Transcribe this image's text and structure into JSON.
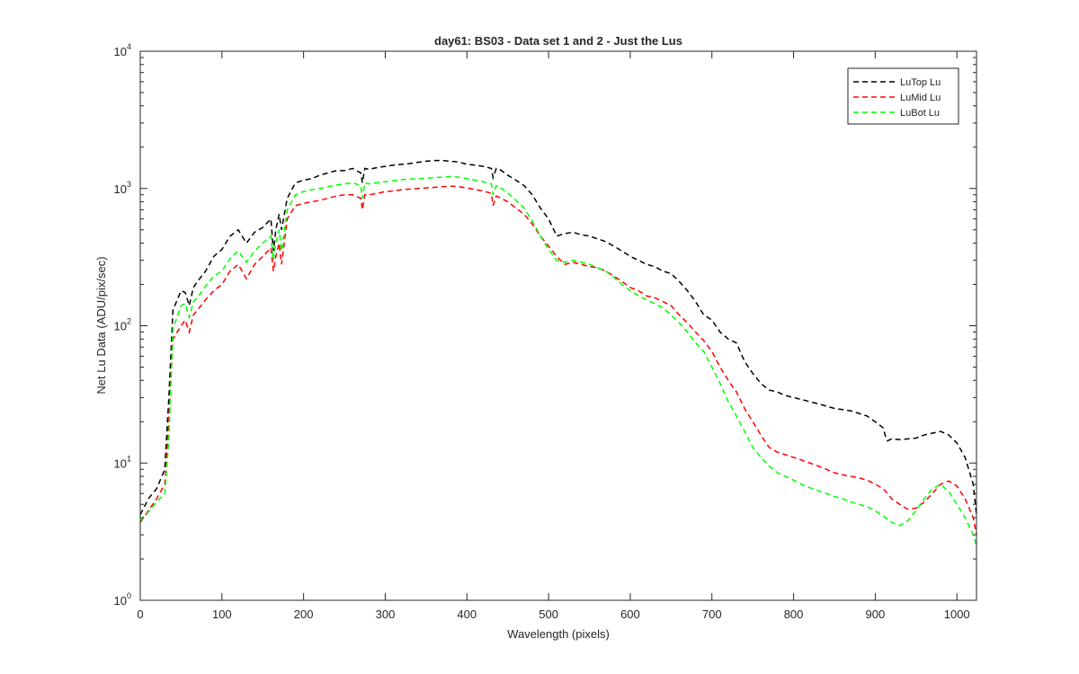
{
  "chart_data": {
    "type": "line",
    "title": "day61: BS03 - Data set 1 and 2 - Just the Lus",
    "xlabel": "Wavelength (pixels)",
    "ylabel": "Net Lu Data (ADU/pix/sec)",
    "xlim": [
      0,
      1024
    ],
    "ylim": [
      1,
      10000
    ],
    "yscale": "log",
    "grid": false,
    "legend_position": "top-right",
    "x_ticks": [
      0,
      100,
      200,
      300,
      400,
      500,
      600,
      700,
      800,
      900,
      1000
    ],
    "y_ticks": [
      {
        "value": 1,
        "base": "10",
        "exp": "0"
      },
      {
        "value": 10,
        "base": "10",
        "exp": "1"
      },
      {
        "value": 100,
        "base": "10",
        "exp": "2"
      },
      {
        "value": 1000,
        "base": "10",
        "exp": "3"
      },
      {
        "value": 10000,
        "base": "10",
        "exp": "4"
      }
    ],
    "series": [
      {
        "name": "LuTop  Lu",
        "color": "#000000",
        "x": [
          0,
          10,
          20,
          30,
          35,
          40,
          50,
          55,
          60,
          65,
          70,
          80,
          90,
          100,
          110,
          120,
          130,
          140,
          150,
          160,
          163,
          166,
          170,
          173,
          180,
          190,
          200,
          210,
          220,
          230,
          240,
          250,
          260,
          270,
          272,
          275,
          280,
          290,
          300,
          310,
          320,
          330,
          340,
          350,
          360,
          370,
          380,
          390,
          400,
          410,
          420,
          430,
          432,
          436,
          440,
          450,
          460,
          470,
          480,
          490,
          500,
          510,
          520,
          530,
          540,
          550,
          560,
          570,
          580,
          590,
          600,
          610,
          620,
          630,
          640,
          650,
          660,
          670,
          680,
          690,
          700,
          710,
          720,
          730,
          740,
          750,
          760,
          770,
          780,
          790,
          800,
          810,
          820,
          830,
          840,
          850,
          860,
          870,
          880,
          890,
          900,
          910,
          912,
          915,
          920,
          930,
          940,
          950,
          960,
          970,
          980,
          990,
          1000,
          1010,
          1020,
          1024
        ],
        "values": [
          4.2,
          5.5,
          6.5,
          9,
          30,
          130,
          180,
          175,
          140,
          190,
          210,
          250,
          320,
          360,
          450,
          500,
          400,
          480,
          520,
          600,
          350,
          500,
          650,
          500,
          850,
          1100,
          1150,
          1180,
          1250,
          1300,
          1350,
          1350,
          1400,
          1300,
          1100,
          1400,
          1380,
          1420,
          1450,
          1480,
          1500,
          1520,
          1550,
          1580,
          1600,
          1600,
          1580,
          1560,
          1500,
          1480,
          1450,
          1400,
          1200,
          1400,
          1380,
          1250,
          1150,
          1050,
          900,
          720,
          600,
          450,
          470,
          480,
          460,
          450,
          430,
          410,
          380,
          350,
          320,
          300,
          280,
          270,
          250,
          240,
          210,
          180,
          150,
          120,
          110,
          90,
          80,
          75,
          55,
          45,
          38,
          34,
          33,
          31,
          30,
          29,
          28,
          27,
          26,
          25,
          24.5,
          24,
          23,
          22,
          20,
          18,
          16,
          14.5,
          15,
          14.8,
          15,
          15.2,
          16,
          16.5,
          17,
          16,
          14,
          11,
          7,
          4.2
        ]
      },
      {
        "name": "LuMid  Lu",
        "color": "#ff0000",
        "x": [
          0,
          10,
          20,
          30,
          35,
          40,
          50,
          55,
          60,
          65,
          70,
          80,
          90,
          100,
          110,
          120,
          130,
          140,
          150,
          160,
          163,
          166,
          170,
          173,
          180,
          190,
          200,
          210,
          220,
          230,
          240,
          250,
          260,
          270,
          272,
          275,
          280,
          290,
          300,
          310,
          320,
          330,
          340,
          350,
          360,
          370,
          380,
          390,
          400,
          410,
          420,
          430,
          432,
          436,
          440,
          450,
          460,
          470,
          480,
          490,
          500,
          510,
          520,
          530,
          540,
          550,
          560,
          570,
          580,
          590,
          600,
          610,
          620,
          630,
          640,
          650,
          660,
          670,
          680,
          690,
          700,
          710,
          720,
          730,
          740,
          750,
          760,
          770,
          780,
          790,
          800,
          810,
          820,
          830,
          840,
          850,
          860,
          870,
          880,
          890,
          900,
          910,
          920,
          930,
          940,
          950,
          960,
          970,
          980,
          990,
          1000,
          1010,
          1020,
          1024
        ],
        "values": [
          3.7,
          4.5,
          5.5,
          7,
          20,
          80,
          100,
          110,
          90,
          120,
          130,
          155,
          180,
          200,
          250,
          280,
          220,
          280,
          320,
          370,
          250,
          320,
          400,
          280,
          600,
          750,
          780,
          800,
          820,
          850,
          880,
          900,
          900,
          850,
          700,
          900,
          900,
          920,
          950,
          960,
          980,
          990,
          1000,
          1010,
          1020,
          1030,
          1040,
          1030,
          1010,
          980,
          960,
          920,
          750,
          880,
          860,
          800,
          720,
          650,
          550,
          450,
          380,
          320,
          280,
          290,
          280,
          270,
          265,
          250,
          230,
          210,
          190,
          180,
          165,
          160,
          150,
          140,
          120,
          105,
          90,
          78,
          65,
          50,
          40,
          33,
          25,
          20,
          16,
          13,
          12,
          11.5,
          11,
          10.5,
          10,
          9.5,
          9,
          8.5,
          8.2,
          8,
          7.8,
          7.5,
          7,
          6.5,
          5.5,
          5,
          4.6,
          4.7,
          5.2,
          6,
          7,
          7.4,
          6.8,
          5.5,
          4,
          3
        ]
      },
      {
        "name": "LuBot  Lu",
        "color": "#00ff00",
        "x": [
          0,
          10,
          20,
          30,
          35,
          40,
          50,
          55,
          60,
          65,
          70,
          80,
          90,
          100,
          110,
          120,
          130,
          140,
          150,
          160,
          163,
          166,
          170,
          173,
          180,
          190,
          200,
          210,
          220,
          230,
          240,
          250,
          260,
          270,
          272,
          275,
          280,
          290,
          300,
          310,
          320,
          330,
          340,
          350,
          360,
          370,
          380,
          390,
          400,
          410,
          420,
          430,
          432,
          436,
          440,
          450,
          460,
          470,
          480,
          490,
          500,
          510,
          520,
          530,
          540,
          550,
          560,
          570,
          580,
          590,
          600,
          610,
          620,
          630,
          640,
          650,
          660,
          670,
          680,
          690,
          700,
          710,
          720,
          730,
          740,
          750,
          760,
          770,
          780,
          790,
          800,
          810,
          820,
          830,
          840,
          850,
          860,
          870,
          880,
          890,
          900,
          910,
          920,
          930,
          940,
          950,
          960,
          970,
          980,
          990,
          1000,
          1010,
          1020,
          1024
        ],
        "values": [
          3.8,
          4.4,
          5.2,
          6,
          15,
          95,
          140,
          145,
          115,
          150,
          160,
          195,
          230,
          250,
          310,
          350,
          290,
          350,
          400,
          450,
          300,
          400,
          500,
          350,
          700,
          900,
          950,
          980,
          1000,
          1030,
          1060,
          1080,
          1100,
          1050,
          850,
          1100,
          1080,
          1100,
          1120,
          1140,
          1160,
          1170,
          1180,
          1190,
          1200,
          1210,
          1220,
          1210,
          1180,
          1150,
          1120,
          1080,
          900,
          1050,
          1020,
          930,
          820,
          720,
          580,
          450,
          360,
          300,
          290,
          300,
          290,
          280,
          265,
          250,
          225,
          200,
          180,
          165,
          155,
          145,
          135,
          120,
          105,
          90,
          75,
          65,
          50,
          38,
          28,
          22,
          17,
          13,
          11,
          9.5,
          8.5,
          8,
          7.5,
          7,
          6.6,
          6.3,
          6,
          5.7,
          5.5,
          5.2,
          5,
          4.8,
          4.5,
          4.1,
          3.7,
          3.5,
          3.8,
          4.5,
          5.5,
          6.5,
          7,
          6.2,
          5,
          4,
          3,
          2.5
        ]
      }
    ]
  }
}
